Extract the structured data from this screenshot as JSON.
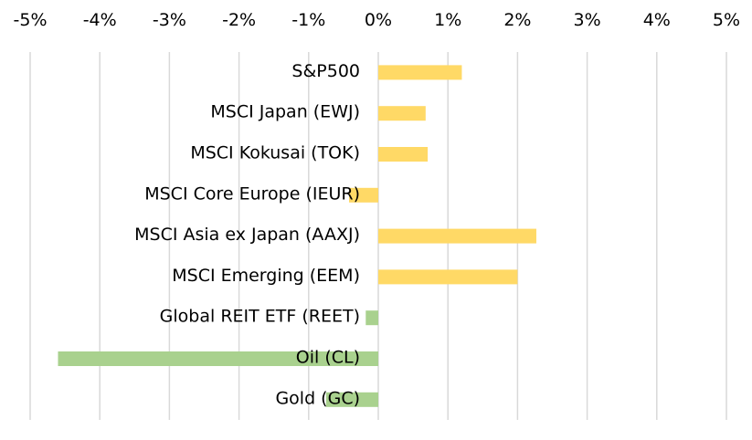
{
  "chart_data": {
    "type": "bar",
    "orientation": "horizontal",
    "title": "",
    "xlabel": "",
    "ylabel": "",
    "xlim": [
      -5,
      5
    ],
    "x_ticks": [
      -5,
      -4,
      -3,
      -2,
      -1,
      0,
      1,
      2,
      3,
      4,
      5
    ],
    "x_tick_labels": [
      "-5%",
      "-4%",
      "-3%",
      "-2%",
      "-1%",
      "0%",
      "1%",
      "2%",
      "3%",
      "4%",
      "5%"
    ],
    "x_axis_position": "top",
    "grid": true,
    "categories": [
      "S&P500",
      "MSCI Japan (EWJ)",
      "MSCI Kokusai (TOK)",
      "MSCI Core Europe (IEUR)",
      "MSCI Asia ex Japan (AAXJ)",
      "MSCI Emerging (EEM)",
      "Global REIT ETF (REET)",
      "Oil (CL)",
      "Gold (GC)"
    ],
    "values": [
      1.2,
      0.68,
      0.71,
      -0.42,
      2.27,
      2.0,
      -0.18,
      -4.6,
      -0.75
    ],
    "groups": [
      "equity",
      "equity",
      "equity",
      "equity",
      "equity",
      "equity",
      "other",
      "other",
      "other"
    ],
    "colors": {
      "equity": "#ffd966",
      "other": "#a9d18e"
    }
  }
}
